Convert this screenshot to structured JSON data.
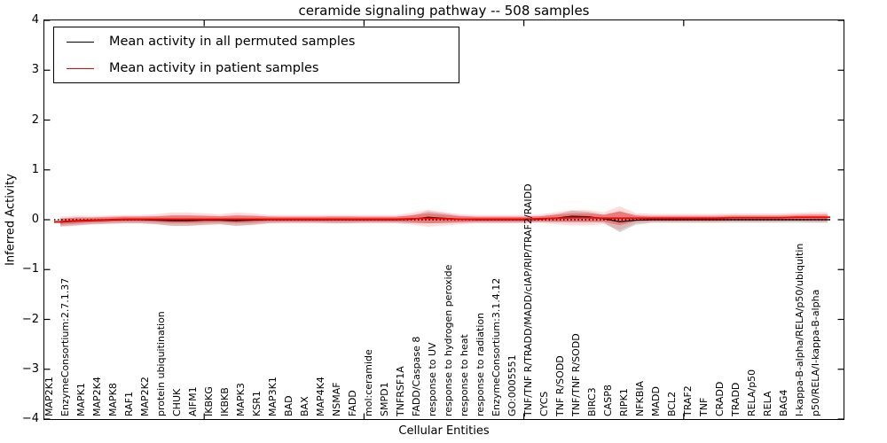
{
  "title": "ceramide signaling pathway -- 508 samples",
  "legend": {
    "items": [
      {
        "label": "Mean activity in all permuted samples",
        "color": "#000000"
      },
      {
        "label": "Mean activity in patient samples",
        "color": "#ff0000"
      }
    ]
  },
  "axes": {
    "ylabel": "Inferred Activity",
    "xlabel": "Cellular Entities",
    "yticks": [
      "4",
      "3",
      "2",
      "1",
      "0",
      "−1",
      "−2",
      "−3",
      "−4"
    ],
    "ylim": [
      -4,
      4
    ],
    "frame_color": "#000000"
  },
  "chart_data": {
    "type": "line",
    "title": "ceramide signaling pathway -- 508 samples",
    "xlabel": "Cellular Entities",
    "ylabel": "Inferred Activity",
    "ylim": [
      -4,
      4
    ],
    "grid": false,
    "legend_position": "upper left",
    "zero_line": {
      "y": 0,
      "style": "dotted",
      "color": "#000000"
    },
    "categories": [
      "MAP2K1",
      "EnzymeConsortium:2.7.1.37",
      "MAPK1",
      "MAP2K4",
      "MAPK8",
      "RAF1",
      "MAP2K2",
      "protein ubiquitination",
      "CHUK",
      "AIFM1",
      "IKBKG",
      "IKBKB",
      "MAPK3",
      "KSR1",
      "MAP3K1",
      "BAD",
      "BAX",
      "MAP4K4",
      "NSMAF",
      "FADD",
      "mol:ceramide",
      "SMPD1",
      "TNFRSF1A",
      "FADD/Caspase 8",
      "response to UV",
      "response to hydrogen peroxide",
      "response to heat",
      "response to radiation",
      "EnzymeConsortium:3.1.4.12",
      "GO:0005551",
      "TNF/TNF R/TRADD/MADD/cIAP/RIP/TRAF2/RAIDD",
      "CYCS",
      "TNF R/SODD",
      "TNF/TNF R/SODD",
      "BIRC3",
      "CASP8",
      "RIPK1",
      "NFKBIA",
      "MADD",
      "BCL2",
      "TRAF2",
      "TNF",
      "CRADD",
      "TRADD",
      "RELA/p50",
      "RELA",
      "BAG4",
      "I-kappa-B-alpha/RELA/p50/ubiquitin",
      "p50/RELA/I-kappa-B-alpha"
    ],
    "series": [
      {
        "name": "Mean activity in all permuted samples",
        "color": "#000000",
        "band_color": "#000000",
        "band_alpha": 0.16,
        "values": [
          -0.05,
          -0.03,
          -0.02,
          -0.01,
          0,
          0,
          -0.01,
          -0.02,
          -0.02,
          -0.01,
          -0.01,
          -0.02,
          -0.01,
          0,
          0,
          0,
          0,
          0,
          0,
          0,
          0,
          0,
          0.01,
          0.05,
          0.03,
          0.01,
          0,
          0,
          0,
          0,
          0.01,
          0.03,
          0.07,
          0.06,
          0.02,
          -0.04,
          -0.01,
          0,
          0,
          0,
          0,
          0,
          0,
          0,
          0,
          0,
          0,
          0,
          0
        ],
        "band_halfwidth": [
          0.08,
          0.08,
          0.07,
          0.07,
          0.07,
          0.07,
          0.08,
          0.1,
          0.1,
          0.09,
          0.08,
          0.1,
          0.09,
          0.07,
          0.06,
          0.06,
          0.06,
          0.07,
          0.07,
          0.06,
          0.06,
          0.06,
          0.08,
          0.12,
          0.1,
          0.07,
          0.06,
          0.06,
          0.06,
          0.06,
          0.06,
          0.08,
          0.11,
          0.1,
          0.08,
          0.21,
          0.09,
          0.06,
          0.06,
          0.06,
          0.06,
          0.06,
          0.06,
          0.06,
          0.06,
          0.06,
          0.06,
          0.06,
          0.06
        ]
      },
      {
        "name": "Mean activity in patient samples",
        "color": "#ff0000",
        "band_color": "#ff0000",
        "band_alpha": 0.32,
        "values": [
          -0.04,
          -0.02,
          -0.01,
          0,
          0.01,
          0.01,
          0.01,
          0.01,
          0.01,
          0.01,
          0.01,
          0.01,
          0.01,
          0.01,
          0.01,
          0.01,
          0.01,
          0.01,
          0.01,
          0.01,
          0.01,
          0.01,
          0.02,
          0.03,
          0.02,
          0.01,
          0.01,
          0.01,
          0.01,
          0.01,
          0.02,
          0.03,
          0.04,
          0.04,
          0.03,
          0.03,
          0.03,
          0.03,
          0.03,
          0.03,
          0.03,
          0.03,
          0.04,
          0.04,
          0.04,
          0.04,
          0.05,
          0.05,
          0.05
        ],
        "band_halfwidth": [
          0.06,
          0.06,
          0.05,
          0.05,
          0.05,
          0.05,
          0.06,
          0.08,
          0.08,
          0.07,
          0.06,
          0.08,
          0.07,
          0.05,
          0.05,
          0.05,
          0.05,
          0.05,
          0.05,
          0.05,
          0.05,
          0.05,
          0.07,
          0.1,
          0.08,
          0.06,
          0.05,
          0.05,
          0.05,
          0.05,
          0.05,
          0.07,
          0.09,
          0.09,
          0.07,
          0.14,
          0.06,
          0.05,
          0.05,
          0.05,
          0.05,
          0.05,
          0.05,
          0.05,
          0.05,
          0.05,
          0.05,
          0.06,
          0.06
        ]
      }
    ]
  }
}
